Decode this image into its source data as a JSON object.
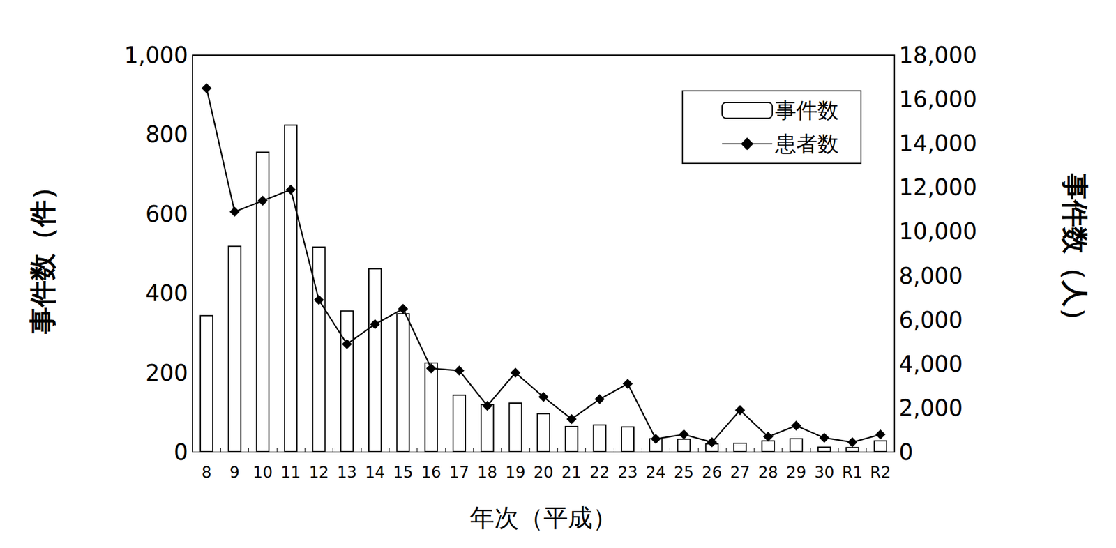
{
  "chart_data": {
    "type": "bar",
    "categories": [
      "8",
      "9",
      "10",
      "11",
      "12",
      "13",
      "14",
      "15",
      "16",
      "17",
      "18",
      "19",
      "20",
      "21",
      "22",
      "23",
      "24",
      "25",
      "26",
      "27",
      "28",
      "29",
      "30",
      "R1",
      "R2"
    ],
    "x_label": "年次（平成）",
    "y_label": "事件数（件）",
    "y2_label": "事件数（人）",
    "ylim": [
      0,
      1000
    ],
    "yticks": [
      0,
      200,
      400,
      600,
      800,
      {
        "value": 1000,
        "label": "1,000"
      }
    ],
    "y2lim": [
      0,
      18000
    ],
    "y2ticks": [
      0,
      {
        "value": 2000,
        "label": "2,000"
      },
      {
        "value": 4000,
        "label": "4,000"
      },
      {
        "value": 6000,
        "label": "6,000"
      },
      {
        "value": 8000,
        "label": "8,000"
      },
      {
        "value": 10000,
        "label": "10,000"
      },
      {
        "value": 12000,
        "label": "12,000"
      },
      {
        "value": 14000,
        "label": "14,000"
      },
      {
        "value": 16000,
        "label": "16,000"
      },
      {
        "value": 18000,
        "label": "18,000"
      }
    ],
    "grid": false,
    "legend": "upper right",
    "series": [
      {
        "name": "事件数",
        "type": "bar",
        "color": "#ffffff",
        "values": [
          345,
          520,
          757,
          825,
          518,
          357,
          463,
          350,
          226,
          145,
          121,
          125,
          98,
          66,
          70,
          65,
          35,
          34,
          22,
          24,
          30,
          35,
          14,
          13,
          30
        ]
      },
      {
        "name": "患者数",
        "type": "line",
        "axis": "y2",
        "color": "#000000",
        "marker": "diamond",
        "line_style": "solid",
        "values": [
          16500,
          10900,
          11400,
          11900,
          6900,
          4900,
          5800,
          6500,
          3800,
          3700,
          2100,
          3600,
          2500,
          1500,
          2400,
          3100,
          600,
          800,
          450,
          1900,
          700,
          1200,
          650,
          450,
          800
        ]
      }
    ]
  }
}
